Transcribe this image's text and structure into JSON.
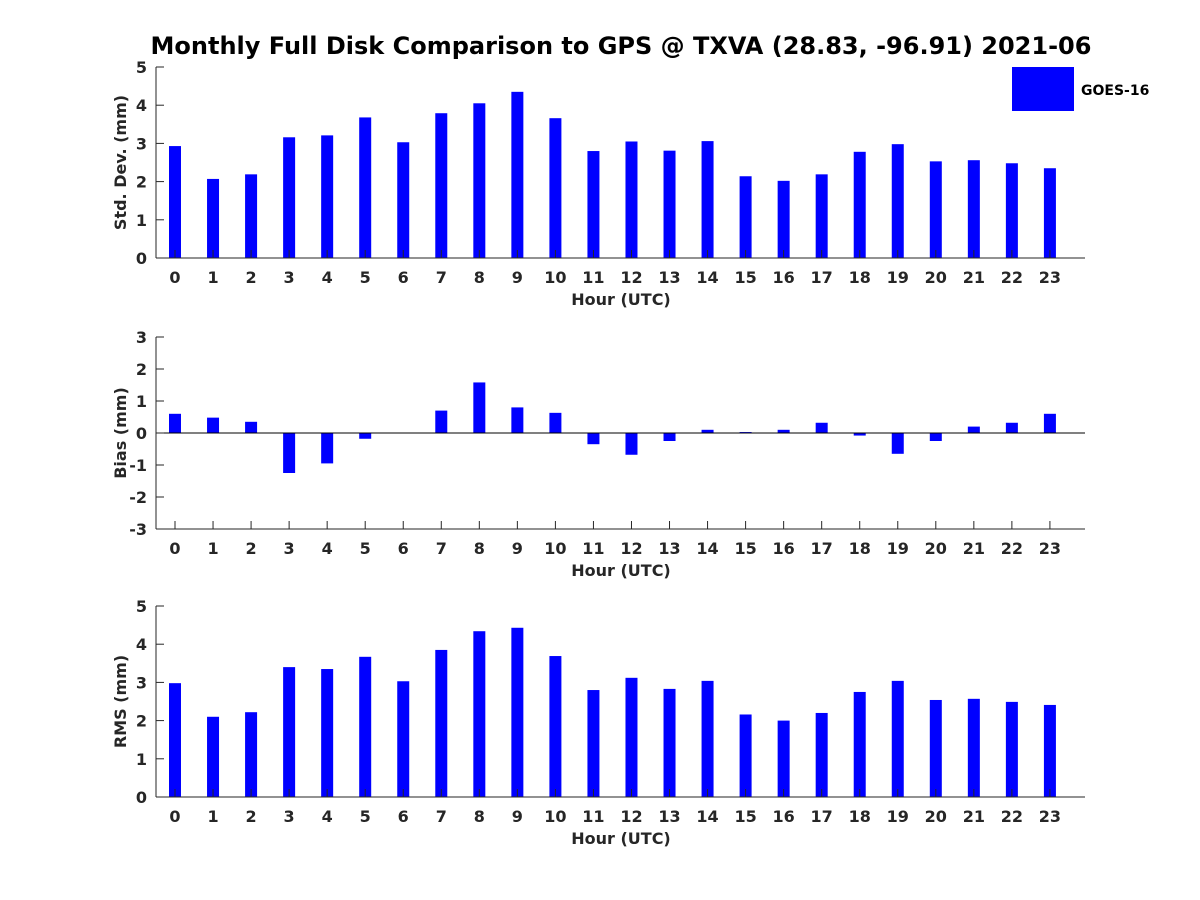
{
  "figure": {
    "title": "Monthly Full Disk Comparison to GPS @ TXVA (28.83, -96.91) 2021-06"
  },
  "legend": {
    "label": "GOES-16",
    "color": "#0000ff",
    "placement": "top-right"
  },
  "chart_data": [
    {
      "type": "bar",
      "name": "std-dev",
      "xlabel": "Hour (UTC)",
      "ylabel": "Std. Dev. (mm)",
      "ylim": [
        0,
        5
      ],
      "yticks": [
        0,
        1,
        2,
        3,
        4,
        5
      ],
      "categories": [
        "0",
        "1",
        "2",
        "3",
        "4",
        "5",
        "6",
        "7",
        "8",
        "9",
        "10",
        "11",
        "12",
        "13",
        "14",
        "15",
        "16",
        "17",
        "18",
        "19",
        "20",
        "21",
        "22",
        "23"
      ],
      "series": [
        {
          "name": "GOES-16",
          "color": "#0000ff",
          "values": [
            2.93,
            2.07,
            2.19,
            3.16,
            3.21,
            3.68,
            3.03,
            3.79,
            4.05,
            4.35,
            3.66,
            2.8,
            3.05,
            2.81,
            3.06,
            2.14,
            2.02,
            2.19,
            2.78,
            2.98,
            2.53,
            2.56,
            2.48,
            2.35
          ]
        }
      ],
      "grid": false
    },
    {
      "type": "bar",
      "name": "bias",
      "xlabel": "Hour (UTC)",
      "ylabel": "Bias (mm)",
      "ylim": [
        -3,
        3
      ],
      "yticks": [
        -3,
        -2,
        -1,
        0,
        1,
        2,
        3
      ],
      "categories": [
        "0",
        "1",
        "2",
        "3",
        "4",
        "5",
        "6",
        "7",
        "8",
        "9",
        "10",
        "11",
        "12",
        "13",
        "14",
        "15",
        "16",
        "17",
        "18",
        "19",
        "20",
        "21",
        "22",
        "23"
      ],
      "series": [
        {
          "name": "GOES-16",
          "color": "#0000ff",
          "values": [
            0.6,
            0.48,
            0.35,
            -1.25,
            -0.95,
            -0.18,
            0.0,
            0.7,
            1.58,
            0.8,
            0.63,
            -0.35,
            -0.68,
            -0.25,
            0.1,
            0.03,
            0.1,
            0.32,
            -0.08,
            -0.65,
            -0.25,
            0.2,
            0.32,
            0.6
          ]
        }
      ],
      "grid": false,
      "zero_line": true
    },
    {
      "type": "bar",
      "name": "rms",
      "xlabel": "Hour (UTC)",
      "ylabel": "RMS (mm)",
      "ylim": [
        0,
        5
      ],
      "yticks": [
        0,
        1,
        2,
        3,
        4,
        5
      ],
      "categories": [
        "0",
        "1",
        "2",
        "3",
        "4",
        "5",
        "6",
        "7",
        "8",
        "9",
        "10",
        "11",
        "12",
        "13",
        "14",
        "15",
        "16",
        "17",
        "18",
        "19",
        "20",
        "21",
        "22",
        "23"
      ],
      "series": [
        {
          "name": "GOES-16",
          "color": "#0000ff",
          "values": [
            2.98,
            2.1,
            2.22,
            3.4,
            3.35,
            3.67,
            3.03,
            3.85,
            4.34,
            4.43,
            3.69,
            2.8,
            3.12,
            2.83,
            3.04,
            2.16,
            2.0,
            2.2,
            2.75,
            3.04,
            2.54,
            2.57,
            2.49,
            2.41
          ]
        }
      ],
      "grid": false
    }
  ]
}
